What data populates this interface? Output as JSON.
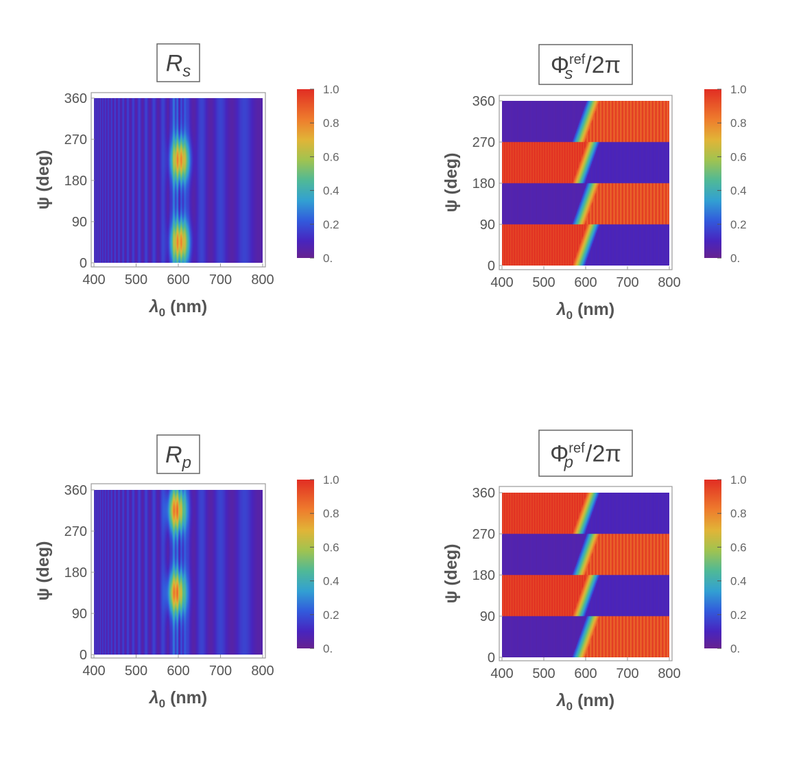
{
  "chart_data": [
    {
      "type": "heatmap",
      "title": {
        "main": "R",
        "sub": "s",
        "sup": "",
        "rest": ""
      },
      "xlabel": {
        "main": "λ",
        "sub": "0",
        "rest": " (nm)"
      },
      "ylabel": "ψ (deg)",
      "xlim": [
        400,
        800
      ],
      "ylim": [
        0,
        360
      ],
      "xticks": [
        "400",
        "500",
        "600",
        "700",
        "800"
      ],
      "yticks": [
        "0",
        "90",
        "180",
        "270",
        "360"
      ],
      "colorbar": {
        "range": [
          0,
          1
        ],
        "ticks": [
          "0.",
          "0.2",
          "0.4",
          "0.6",
          "0.8",
          "1.0"
        ]
      },
      "pattern": "reflectance",
      "peak_psi_deg": [
        45,
        225
      ],
      "resonance_nm": 600
    },
    {
      "type": "heatmap",
      "title": {
        "main": "Φ",
        "sub": "s",
        "sup": "ref",
        "rest": "/2π"
      },
      "xlabel": {
        "main": "λ",
        "sub": "0",
        "rest": " (nm)"
      },
      "ylabel": "ψ (deg)",
      "xlim": [
        400,
        800
      ],
      "ylim": [
        0,
        360
      ],
      "xticks": [
        "400",
        "500",
        "600",
        "700",
        "800"
      ],
      "yticks": [
        "0",
        "90",
        "180",
        "270",
        "360"
      ],
      "colorbar": {
        "range": [
          0,
          1
        ],
        "ticks": [
          "0.",
          "0.2",
          "0.4",
          "0.6",
          "0.8",
          "1.0"
        ]
      },
      "pattern": "phase",
      "phase_offset_deg": 0,
      "resonance_nm": 600
    },
    {
      "type": "heatmap",
      "title": {
        "main": "R",
        "sub": "p",
        "sup": "",
        "rest": ""
      },
      "xlabel": {
        "main": "λ",
        "sub": "0",
        "rest": " (nm)"
      },
      "ylabel": "ψ (deg)",
      "xlim": [
        400,
        800
      ],
      "ylim": [
        0,
        360
      ],
      "xticks": [
        "400",
        "500",
        "600",
        "700",
        "800"
      ],
      "yticks": [
        "0",
        "90",
        "180",
        "270",
        "360"
      ],
      "colorbar": {
        "range": [
          0,
          1
        ],
        "ticks": [
          "0.",
          "0.2",
          "0.4",
          "0.6",
          "0.8",
          "1.0"
        ]
      },
      "pattern": "reflectance",
      "peak_psi_deg": [
        135,
        315
      ],
      "resonance_nm": 600
    },
    {
      "type": "heatmap",
      "title": {
        "main": "Φ",
        "sub": "p",
        "sup": "ref",
        "rest": "/2π"
      },
      "xlabel": {
        "main": "λ",
        "sub": "0",
        "rest": " (nm)"
      },
      "ylabel": "ψ (deg)",
      "xlim": [
        400,
        800
      ],
      "ylim": [
        0,
        360
      ],
      "xticks": [
        "400",
        "500",
        "600",
        "700",
        "800"
      ],
      "yticks": [
        "0",
        "90",
        "180",
        "270",
        "360"
      ],
      "colorbar": {
        "range": [
          0,
          1
        ],
        "ticks": [
          "0.",
          "0.2",
          "0.4",
          "0.6",
          "0.8",
          "1.0"
        ]
      },
      "pattern": "phase",
      "phase_offset_deg": 90,
      "resonance_nm": 600
    }
  ]
}
